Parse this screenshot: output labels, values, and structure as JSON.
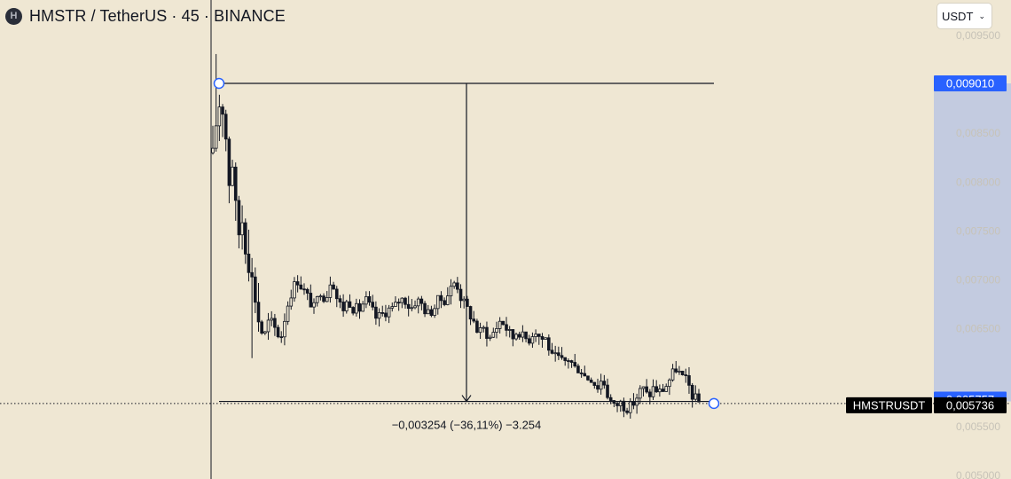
{
  "header": {
    "logo_letter": "H",
    "title": "HMSTR / TetherUS · 45 · BINANCE"
  },
  "currency_selector": {
    "value": "USDT",
    "chevron": "chevron-down-icon"
  },
  "colors": {
    "background": "#efe7d3",
    "candle": "#131722",
    "highlight_band": "#c3cbe0",
    "price_tag_blue": "#2962ff",
    "last_price_tag": "#000000",
    "axis_text": "#c7c3b8"
  },
  "chart_data": {
    "type": "candlestick",
    "symbol": "HMSTRUSDT",
    "y_axis": {
      "ticks": [
        "0,009500",
        "0,008500",
        "0,008000",
        "0,007500",
        "0,007000",
        "0,006500",
        "0,005500",
        "0,005000"
      ],
      "tick_values": [
        0.0095,
        0.0085,
        0.008,
        0.0075,
        0.007,
        0.0065,
        0.0055,
        0.005
      ],
      "range": [
        0.0049,
        0.0096
      ]
    },
    "price_tags": {
      "upper": {
        "value": 0.00901,
        "label": "0,009010"
      },
      "lower": {
        "value": 0.005757,
        "label": "0,005757"
      },
      "last": {
        "value": 0.005736,
        "label": "0,005736",
        "symbol_label": "HMSTRUSDT"
      }
    },
    "measurement": {
      "from_price": 0.00901,
      "to_price": 0.005757,
      "label": "−0,003254 (−36,11%) −3.254"
    },
    "bar_count": 150,
    "waypoints": [
      [
        0,
        0.0083
      ],
      [
        2,
        0.0088
      ],
      [
        4,
        0.0087
      ],
      [
        6,
        0.0079
      ],
      [
        7,
        0.0082
      ],
      [
        9,
        0.0074
      ],
      [
        10,
        0.0077
      ],
      [
        12,
        0.0072
      ],
      [
        14,
        0.007
      ],
      [
        16,
        0.0066
      ],
      [
        18,
        0.0064
      ],
      [
        20,
        0.0066
      ],
      [
        22,
        0.0065
      ],
      [
        24,
        0.0064
      ],
      [
        26,
        0.0067
      ],
      [
        28,
        0.0069
      ],
      [
        30,
        0.007
      ],
      [
        32,
        0.0069
      ],
      [
        34,
        0.0068
      ],
      [
        36,
        0.0067
      ],
      [
        38,
        0.0069
      ],
      [
        40,
        0.0068
      ],
      [
        42,
        0.00705
      ],
      [
        44,
        0.0068
      ],
      [
        46,
        0.0067
      ],
      [
        48,
        0.0068
      ],
      [
        50,
        0.0067
      ],
      [
        52,
        0.0067
      ],
      [
        54,
        0.0068
      ],
      [
        56,
        0.0067
      ],
      [
        58,
        0.0066
      ],
      [
        60,
        0.00665
      ],
      [
        62,
        0.0067
      ],
      [
        64,
        0.0067
      ],
      [
        66,
        0.0068
      ],
      [
        68,
        0.0068
      ],
      [
        70,
        0.0067
      ],
      [
        72,
        0.0068
      ],
      [
        74,
        0.00675
      ],
      [
        76,
        0.00665
      ],
      [
        78,
        0.0067
      ],
      [
        80,
        0.0068
      ],
      [
        82,
        0.0068
      ],
      [
        84,
        0.0069
      ],
      [
        86,
        0.007
      ],
      [
        88,
        0.0068
      ],
      [
        90,
        0.0067
      ],
      [
        92,
        0.0066
      ],
      [
        94,
        0.00645
      ],
      [
        96,
        0.0065
      ],
      [
        98,
        0.0064
      ],
      [
        100,
        0.0065
      ],
      [
        102,
        0.0066
      ],
      [
        104,
        0.0065
      ],
      [
        106,
        0.0064
      ],
      [
        108,
        0.0065
      ],
      [
        110,
        0.0064
      ],
      [
        112,
        0.0064
      ],
      [
        114,
        0.0065
      ],
      [
        116,
        0.0064
      ],
      [
        118,
        0.0064
      ],
      [
        120,
        0.0062
      ],
      [
        122,
        0.0062
      ],
      [
        124,
        0.00615
      ],
      [
        126,
        0.0062
      ],
      [
        128,
        0.0061
      ],
      [
        130,
        0.0061
      ],
      [
        132,
        0.006
      ],
      [
        134,
        0.006
      ],
      [
        136,
        0.0059
      ],
      [
        138,
        0.006
      ],
      [
        140,
        0.0058
      ],
      [
        142,
        0.0057
      ],
      [
        144,
        0.00575
      ],
      [
        146,
        0.0057
      ],
      [
        148,
        0.0057
      ],
      [
        150,
        0.0058
      ],
      [
        152,
        0.0059
      ],
      [
        154,
        0.0058
      ],
      [
        156,
        0.0059
      ],
      [
        158,
        0.00585
      ],
      [
        160,
        0.0059
      ],
      [
        162,
        0.006
      ],
      [
        164,
        0.0061
      ],
      [
        166,
        0.006
      ],
      [
        168,
        0.00595
      ],
      [
        170,
        0.0058
      ],
      [
        172,
        0.00575
      ]
    ]
  }
}
